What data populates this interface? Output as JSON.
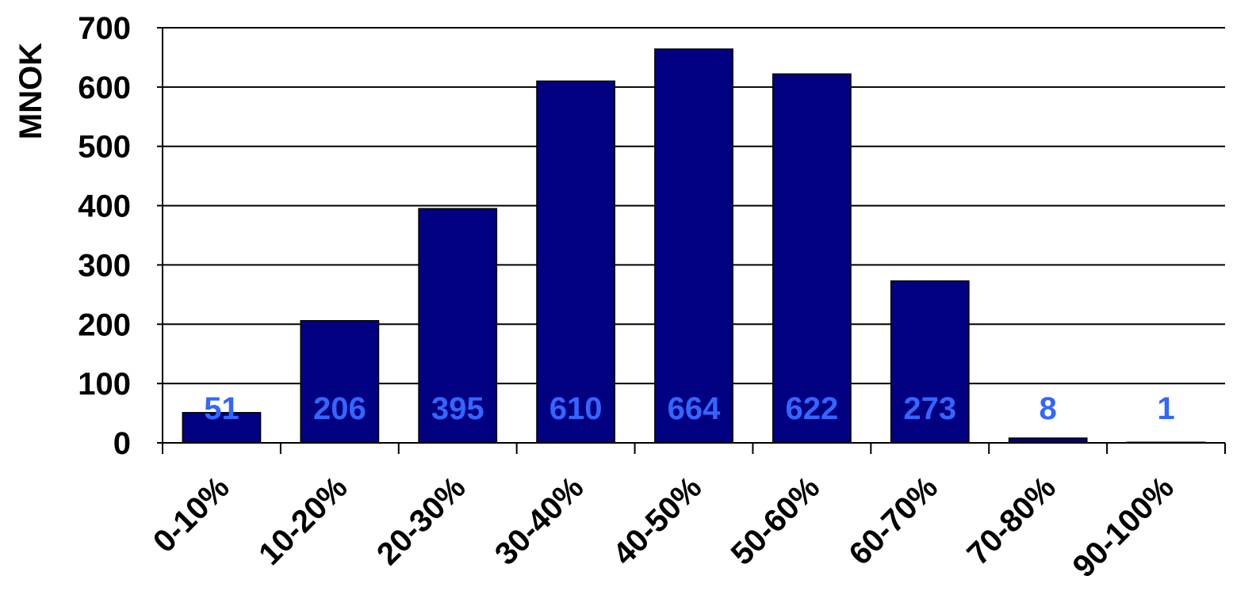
{
  "chart_data": {
    "type": "bar",
    "title": "",
    "xlabel": "",
    "ylabel": "MNOK",
    "categories": [
      "0-10%",
      "10-20%",
      "20-30%",
      "30-40%",
      "40-50%",
      "50-60%",
      "60-70%",
      "70-80%",
      "90-100%"
    ],
    "values": [
      51,
      206,
      395,
      610,
      664,
      622,
      273,
      8,
      1
    ],
    "data_labels": [
      "51",
      "206",
      "395",
      "610",
      "664",
      "622",
      "273",
      "8",
      "1"
    ],
    "ylim": [
      0,
      700
    ],
    "yticks": [
      "0",
      "100",
      "200",
      "300",
      "400",
      "500",
      "600",
      "700"
    ],
    "grid": true,
    "legend": "none",
    "colors": {
      "bar": "#000080",
      "data_label": "#3366FF",
      "grid": "#000000"
    }
  }
}
